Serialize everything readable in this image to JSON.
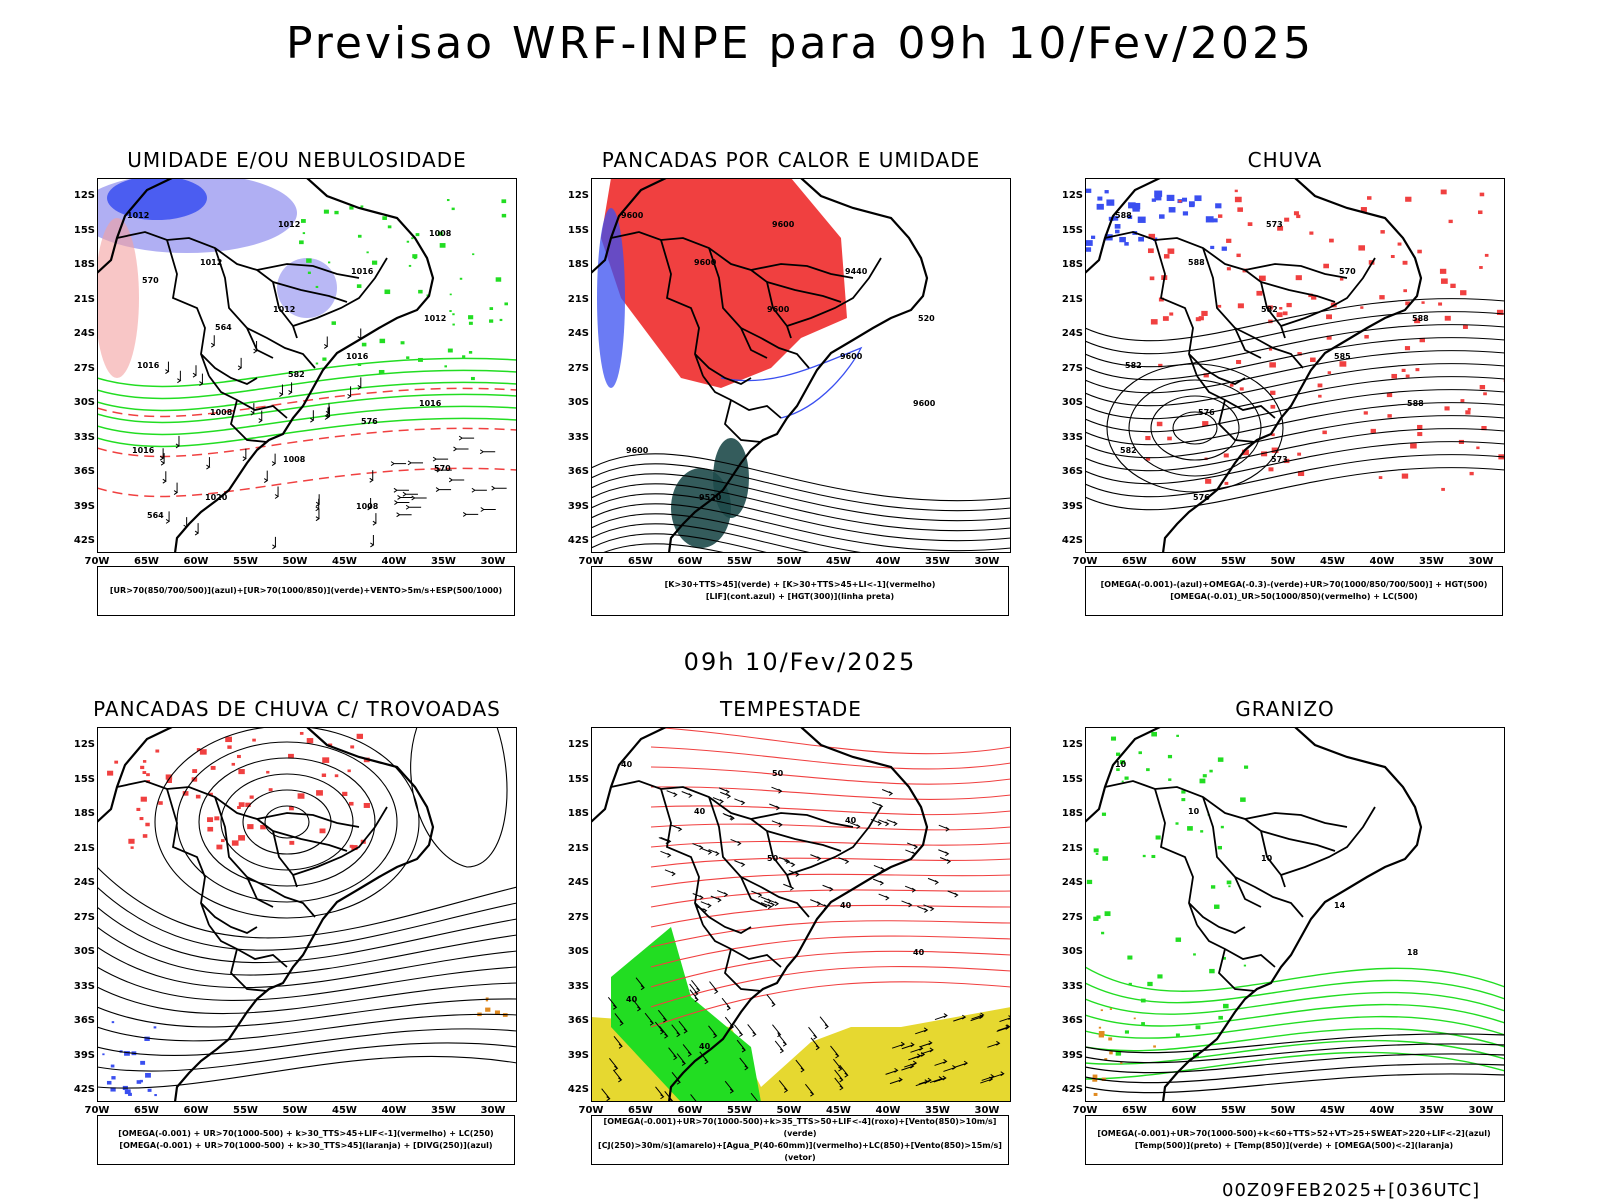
{
  "main_title": "Previsao WRF-INPE  para 09h 10/Fev/2025",
  "mid_label": "09h 10/Fev/2025",
  "footer": "00Z09FEB2025+[036UTC]",
  "axis": {
    "lat": [
      "12S",
      "15S",
      "18S",
      "21S",
      "24S",
      "27S",
      "30S",
      "33S",
      "36S",
      "39S",
      "42S"
    ],
    "lon": [
      "70W",
      "65W",
      "60W",
      "55W",
      "50W",
      "45W",
      "40W",
      "35W",
      "30W"
    ]
  },
  "colors": {
    "blue": "#3a4ff0",
    "lavender": "#a7a6f2",
    "green": "#22dd22",
    "red": "#f04040",
    "darkteal": "#1e4a4a",
    "yellow": "#e6d830",
    "orange": "#e08a20"
  },
  "panels": [
    {
      "title": "UMIDADE E/OU NEBULOSIDADE",
      "legend": [
        "[UR>70(850/700/500)](azul)+[UR>70(1000/850)](verde)+VENTO>5m/s+ESP(500/1000)"
      ],
      "contour_labels": [
        "1012",
        "1012",
        "1012",
        "1016",
        "1016",
        "1016",
        "1020",
        "1012",
        "1016",
        "1012",
        "1016",
        "1008",
        "1008",
        "1008",
        "1008",
        "570",
        "564",
        "582",
        "576",
        "570",
        "564"
      ]
    },
    {
      "title": "PANCADAS POR CALOR E UMIDADE",
      "legend": [
        "[K>30+TTS>45](verde) + [K>30+TTS>45+LI<-1](vermelho)",
        "[LIF](cont.azul) + [HGT(300)](linha preta)"
      ],
      "contour_labels": [
        "9600",
        "9600",
        "9600",
        "9600",
        "9600",
        "9600",
        "9520",
        "9600",
        "9440",
        "520"
      ]
    },
    {
      "title": "CHUVA",
      "legend": [
        "[OMEGA(-0.001)-(azul)+OMEGA(-0.3)-(verde)+UR>70(1000/850/700/500)] + HGT(500)",
        "[OMEGA(-0.01)_UR>50(1000/850)(vermelho) + LC(500)"
      ],
      "contour_labels": [
        "588",
        "588",
        "582",
        "585",
        "588",
        "582",
        "576",
        "573",
        "570",
        "588",
        "582",
        "576",
        "573"
      ]
    },
    {
      "title": "PANCADAS DE CHUVA C/ TROVOADAS",
      "legend": [
        "[OMEGA(-0.001) + UR>70(1000-500) + k>30_TTS>45+LIF<-1](vermelho) + LC(250)",
        "[OMEGA(-0.001) + UR>70(1000-500) + k>30_TTS>45](laranja) + [DIVG(250)](azul)"
      ],
      "contour_labels": []
    },
    {
      "title": "TEMPESTADE",
      "legend": [
        "[OMEGA(-0.001)+UR>70(1000-500)+k>35_TTS>50+LIF<-4](roxo)+[Vento(850)>10m/s](verde)",
        "[CJ(250)>30m/s](amarelo)+[Agua_P(40-60mm)](vermelho)+LC(850)+[Vento(850)>15m/s](vetor)"
      ],
      "contour_labels": [
        "40",
        "40",
        "50",
        "40",
        "40",
        "40",
        "40",
        "50",
        "40"
      ]
    },
    {
      "title": "GRANIZO",
      "legend": [
        "[OMEGA(-0.001)+UR>70(1000-500)+k<60+TTS>52+VT>25+SWEAT>220+LIF<-2](azul)",
        "[Temp(500)](preto) + [Temp(850)](verde) + [OMEGA(500)<-2](laranja)"
      ],
      "contour_labels": [
        "10",
        "10",
        "10",
        "14",
        "18"
      ]
    }
  ]
}
